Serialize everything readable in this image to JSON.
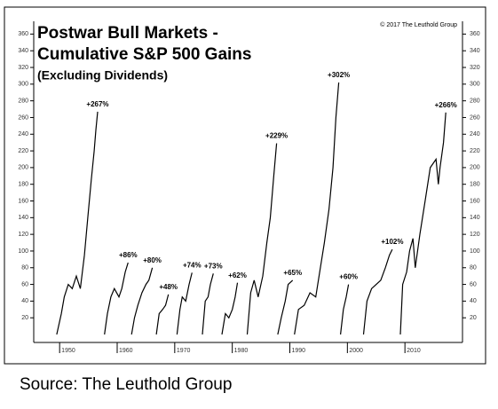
{
  "chart_data": {
    "type": "line",
    "title": [
      "Postwar Bull Markets -",
      "Cumulative S&P 500 Gains"
    ],
    "subtitle": "(Excluding Dividends)",
    "copyright": "© 2017 The Leuthold Group",
    "source": "Source:  The Leuthold Group",
    "color": "#000000",
    "xlim": [
      1945.5,
      2020
    ],
    "xticks": [
      1950,
      1960,
      1970,
      1980,
      1990,
      2000,
      2010
    ],
    "ylim": [
      0,
      370
    ],
    "yticks": [
      20,
      40,
      60,
      80,
      100,
      120,
      140,
      160,
      180,
      200,
      220,
      240,
      260,
      280,
      300,
      320,
      340,
      360
    ],
    "series": [
      {
        "end_label": "+267%",
        "x": [
          1949.5,
          1950.3,
          1950.8,
          1951.5,
          1952.2,
          1952.9,
          1953.6,
          1954.3,
          1954.9,
          1955.5,
          1956.0,
          1956.3,
          1956.6
        ],
        "values": [
          0,
          25,
          45,
          60,
          55,
          70,
          55,
          95,
          140,
          185,
          220,
          245,
          267
        ]
      },
      {
        "end_label": "+86%",
        "x": [
          1957.8,
          1958.3,
          1958.9,
          1959.5,
          1960.3,
          1960.8,
          1961.4,
          1961.9
        ],
        "values": [
          0,
          25,
          45,
          55,
          45,
          55,
          75,
          86
        ]
      },
      {
        "end_label": "+80%",
        "x": [
          1962.5,
          1963.0,
          1963.6,
          1964.3,
          1965.0,
          1965.5,
          1966.1
        ],
        "values": [
          0,
          20,
          35,
          50,
          60,
          65,
          80
        ]
      },
      {
        "end_label": "+48%",
        "x": [
          1966.8,
          1967.3,
          1967.9,
          1968.4,
          1968.9
        ],
        "values": [
          0,
          25,
          30,
          35,
          48
        ]
      },
      {
        "end_label": "+74%",
        "x": [
          1970.4,
          1970.9,
          1971.3,
          1971.9,
          1972.5,
          1973.0
        ],
        "values": [
          0,
          30,
          45,
          40,
          60,
          74
        ]
      },
      {
        "end_label": "+73%",
        "x": [
          1974.8,
          1975.3,
          1975.8,
          1976.2,
          1976.7
        ],
        "values": [
          0,
          40,
          45,
          60,
          73
        ]
      },
      {
        "end_label": "+62%",
        "x": [
          1978.2,
          1978.8,
          1979.4,
          1980.0,
          1980.5,
          1980.9
        ],
        "values": [
          0,
          25,
          20,
          30,
          45,
          62
        ]
      },
      {
        "end_label": "+229%",
        "x": [
          1982.6,
          1983.2,
          1983.8,
          1984.5,
          1985.3,
          1986.0,
          1986.6,
          1987.2,
          1987.7
        ],
        "values": [
          0,
          50,
          65,
          45,
          70,
          110,
          140,
          190,
          229
        ]
      },
      {
        "end_label": "+65%",
        "x": [
          1987.9,
          1988.5,
          1989.2,
          1989.7,
          1990.5
        ],
        "values": [
          0,
          20,
          40,
          60,
          65
        ]
      },
      {
        "end_label": "+302%",
        "x": [
          1990.8,
          1991.5,
          1992.5,
          1993.5,
          1994.5,
          1995.3,
          1996.0,
          1996.8,
          1997.5,
          1998.0,
          1998.5
        ],
        "values": [
          0,
          30,
          35,
          50,
          45,
          80,
          110,
          150,
          200,
          260,
          302
        ]
      },
      {
        "end_label": "+60%",
        "x": [
          1998.8,
          1999.3,
          1999.8,
          2000.2
        ],
        "values": [
          0,
          30,
          45,
          60
        ]
      },
      {
        "end_label": "+102%",
        "x": [
          2002.8,
          2003.4,
          2004.2,
          2005.0,
          2005.8,
          2006.6,
          2007.3,
          2007.8
        ],
        "values": [
          0,
          40,
          55,
          60,
          65,
          80,
          95,
          102
        ]
      },
      {
        "end_label": "+266%",
        "x": [
          2009.2,
          2009.6,
          2010.3,
          2010.8,
          2011.4,
          2011.8,
          2012.6,
          2013.5,
          2014.4,
          2015.4,
          2015.8,
          2016.1,
          2016.7,
          2017.1
        ],
        "values": [
          0,
          60,
          75,
          100,
          115,
          80,
          120,
          160,
          200,
          210,
          180,
          200,
          230,
          266
        ]
      }
    ]
  }
}
